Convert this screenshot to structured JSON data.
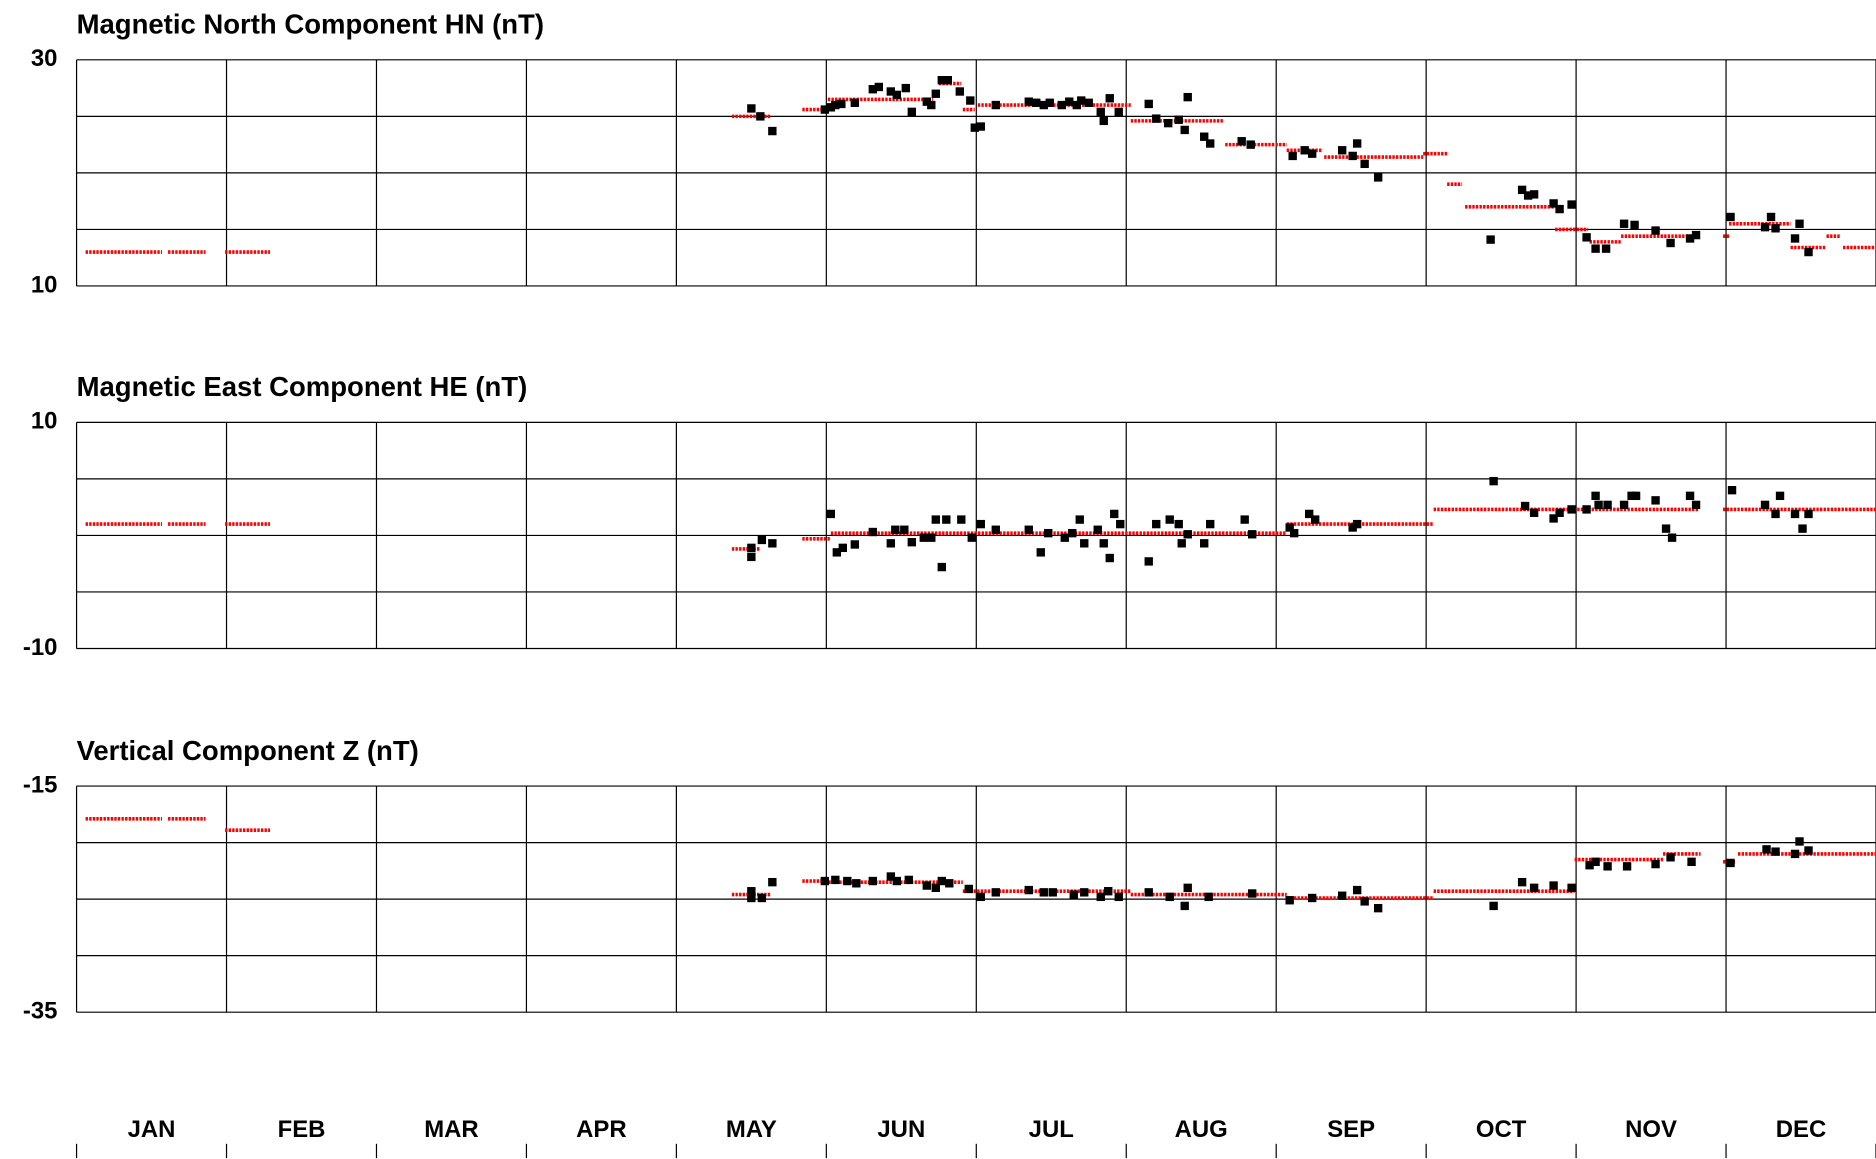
{
  "chart_data": [
    {
      "type": "scatter",
      "title": "Magnetic North Component HN (nT)",
      "xlim": [
        0,
        12
      ],
      "xticks": [
        0,
        1,
        2,
        3,
        4,
        5,
        6,
        7,
        8,
        9,
        10,
        11,
        12
      ],
      "ylim": [
        10,
        30
      ],
      "yticks": [
        10,
        30
      ],
      "ygrid": [
        15,
        20,
        25
      ],
      "series": [
        {
          "color": "#000000",
          "x": [
            4.5,
            4.56,
            4.64,
            4.99,
            5.03,
            5.06,
            5.1,
            5.19,
            5.31,
            5.35,
            5.43,
            5.47,
            5.53,
            5.57,
            5.67,
            5.7,
            5.73,
            5.77,
            5.81,
            5.89,
            5.96,
            5.99,
            6.03,
            6.13,
            6.35,
            6.4,
            6.45,
            6.49,
            6.57,
            6.62,
            6.67,
            6.7,
            6.75,
            6.83,
            6.85,
            6.89,
            6.95,
            7.15,
            7.2,
            7.28,
            7.35,
            7.39,
            7.41,
            7.52,
            7.56,
            7.77,
            7.83,
            8.11,
            8.19,
            8.24,
            8.44,
            8.51,
            8.54,
            8.59,
            8.68,
            9.43,
            9.64,
            9.68,
            9.72,
            9.85,
            9.89,
            9.97,
            10.07,
            10.13,
            10.2,
            10.32,
            10.39,
            10.53,
            10.63,
            10.76,
            10.8,
            11.03,
            11.26,
            11.3,
            11.33,
            11.46,
            11.49,
            11.55
          ],
          "values": [
            25.7,
            25.0,
            23.7,
            25.6,
            25.8,
            26.0,
            26.1,
            26.2,
            27.4,
            27.6,
            27.2,
            26.9,
            27.5,
            25.4,
            26.3,
            26.0,
            27.0,
            28.2,
            28.2,
            27.2,
            26.4,
            24.0,
            24.1,
            26.0,
            26.3,
            26.2,
            26.0,
            26.2,
            26.0,
            26.3,
            26.0,
            26.4,
            26.2,
            25.4,
            24.6,
            26.6,
            25.4,
            26.1,
            24.8,
            24.4,
            24.7,
            23.8,
            26.7,
            23.2,
            22.6,
            22.8,
            22.5,
            21.5,
            22.0,
            21.7,
            22.0,
            21.5,
            22.6,
            20.8,
            19.6,
            14.1,
            18.5,
            18.0,
            18.1,
            17.3,
            16.8,
            17.2,
            14.3,
            13.3,
            13.3,
            15.5,
            15.4,
            14.9,
            13.8,
            14.2,
            14.5,
            16.1,
            15.2,
            16.1,
            15.1,
            14.2,
            15.5,
            13.0
          ]
        }
      ],
      "baselines": {
        "color": "#ff0000",
        "segments": [
          {
            "x": [
              0.06,
              0.57
            ],
            "value": 13.0
          },
          {
            "x": [
              0.61,
              0.86
            ],
            "value": 13.0
          },
          {
            "x": [
              0.99,
              1.29
            ],
            "value": 13.0
          },
          {
            "x": [
              4.37,
              4.63
            ],
            "value": 25.0
          },
          {
            "x": [
              4.84,
              4.99
            ],
            "value": 25.6
          },
          {
            "x": [
              5.01,
              5.71
            ],
            "value": 26.5
          },
          {
            "x": [
              5.75,
              5.9
            ],
            "value": 27.9
          },
          {
            "x": [
              5.91,
              5.99
            ],
            "value": 25.6
          },
          {
            "x": [
              6.01,
              7.03
            ],
            "value": 26.0
          },
          {
            "x": [
              7.03,
              7.65
            ],
            "value": 24.6
          },
          {
            "x": [
              7.66,
              8.07
            ],
            "value": 22.5
          },
          {
            "x": [
              8.07,
              8.31
            ],
            "value": 22.0
          },
          {
            "x": [
              8.32,
              8.98
            ],
            "value": 21.4
          },
          {
            "x": [
              8.98,
              9.14
            ],
            "value": 21.7
          },
          {
            "x": [
              9.14,
              9.24
            ],
            "value": 19.0
          },
          {
            "x": [
              9.26,
              9.86
            ],
            "value": 17.0
          },
          {
            "x": [
              9.86,
              10.08
            ],
            "value": 15.0
          },
          {
            "x": [
              10.09,
              10.3
            ],
            "value": 13.9
          },
          {
            "x": [
              10.3,
              10.82
            ],
            "value": 14.4
          },
          {
            "x": [
              10.98,
              11.02
            ],
            "value": 14.4
          },
          {
            "x": [
              11.02,
              11.43
            ],
            "value": 15.5
          },
          {
            "x": [
              11.43,
              11.66
            ],
            "value": 13.4
          },
          {
            "x": [
              11.67,
              11.76
            ],
            "value": 14.4
          },
          {
            "x": [
              11.78,
              12.0
            ],
            "value": 13.4
          }
        ]
      }
    },
    {
      "type": "scatter",
      "title": "Magnetic East Component HE (nT)",
      "xlim": [
        0,
        12
      ],
      "xticks": [
        0,
        1,
        2,
        3,
        4,
        5,
        6,
        7,
        8,
        9,
        10,
        11,
        12
      ],
      "ylim": [
        -10,
        10
      ],
      "yticks": [
        -10,
        10
      ],
      "ygrid": [
        -5,
        0,
        5
      ],
      "series": [
        {
          "color": "#000000",
          "x": [
            4.5,
            4.5,
            4.57,
            4.64,
            5.03,
            5.07,
            5.11,
            5.19,
            5.31,
            5.43,
            5.46,
            5.52,
            5.57,
            5.65,
            5.7,
            5.73,
            5.77,
            5.8,
            5.9,
            5.97,
            6.03,
            6.13,
            6.35,
            6.43,
            6.48,
            6.59,
            6.64,
            6.69,
            6.72,
            6.81,
            6.85,
            6.89,
            6.92,
            6.96,
            7.15,
            7.2,
            7.29,
            7.35,
            7.37,
            7.41,
            7.52,
            7.56,
            7.79,
            7.84,
            8.09,
            8.12,
            8.22,
            8.26,
            8.51,
            8.54,
            9.45,
            9.66,
            9.72,
            9.85,
            9.89,
            9.97,
            10.07,
            10.13,
            10.15,
            10.21,
            10.32,
            10.37,
            10.4,
            10.53,
            10.6,
            10.64,
            10.76,
            10.8,
            11.04,
            11.26,
            11.33,
            11.36,
            11.46,
            11.51,
            11.55
          ],
          "values": [
            -1.9,
            -1.1,
            -0.4,
            -0.7,
            1.9,
            -1.5,
            -1.1,
            -0.8,
            0.3,
            -0.7,
            0.5,
            0.5,
            -0.6,
            -0.2,
            -0.2,
            1.4,
            -2.8,
            1.4,
            1.4,
            -0.2,
            1.0,
            0.5,
            0.5,
            -1.5,
            0.2,
            -0.2,
            0.2,
            1.4,
            -0.7,
            0.5,
            -0.7,
            -2.0,
            1.9,
            1.0,
            -2.3,
            1.0,
            1.4,
            1.0,
            -0.7,
            0.1,
            -0.7,
            1.0,
            1.4,
            0.1,
            0.7,
            0.2,
            1.9,
            1.4,
            0.7,
            1.0,
            4.8,
            2.6,
            2.0,
            1.5,
            2.0,
            2.3,
            2.3,
            3.5,
            2.7,
            2.7,
            2.7,
            3.5,
            3.5,
            3.1,
            0.6,
            -0.2,
            3.5,
            2.7,
            4.0,
            2.7,
            1.9,
            3.5,
            1.9,
            0.6,
            1.9
          ]
        }
      ],
      "baselines": {
        "color": "#ff0000",
        "segments": [
          {
            "x": [
              0.06,
              0.57
            ],
            "value": 1.0
          },
          {
            "x": [
              0.61,
              0.86
            ],
            "value": 1.0
          },
          {
            "x": [
              0.99,
              1.29
            ],
            "value": 1.0
          },
          {
            "x": [
              4.37,
              4.56
            ],
            "value": -1.2
          },
          {
            "x": [
              4.84,
              5.03
            ],
            "value": -0.3
          },
          {
            "x": [
              5.03,
              8.07
            ],
            "value": 0.2
          },
          {
            "x": [
              8.07,
              9.05
            ],
            "value": 1.0
          },
          {
            "x": [
              9.05,
              10.82
            ],
            "value": 2.3
          },
          {
            "x": [
              10.98,
              12.0
            ],
            "value": 2.3
          }
        ]
      }
    },
    {
      "type": "scatter",
      "title": "Vertical Component Z (nT)",
      "xlim": [
        0,
        12
      ],
      "xticks": [
        0,
        1,
        2,
        3,
        4,
        5,
        6,
        7,
        8,
        9,
        10,
        11,
        12
      ],
      "ylim": [
        -35,
        -15
      ],
      "yticks": [
        -35,
        -15
      ],
      "ygrid": [
        -30,
        -25,
        -20
      ],
      "categories": [
        "JAN",
        "FEB",
        "MAR",
        "APR",
        "MAY",
        "JUN",
        "JUL",
        "AUG",
        "SEP",
        "OCT",
        "NOV",
        "DEC"
      ],
      "series": [
        {
          "color": "#000000",
          "x": [
            4.5,
            4.5,
            4.57,
            4.64,
            4.99,
            5.06,
            5.14,
            5.2,
            5.31,
            5.43,
            5.47,
            5.55,
            5.67,
            5.73,
            5.77,
            5.82,
            5.95,
            6.03,
            6.13,
            6.35,
            6.45,
            6.51,
            6.65,
            6.72,
            6.83,
            6.88,
            6.95,
            7.15,
            7.29,
            7.39,
            7.41,
            7.55,
            7.84,
            8.09,
            8.24,
            8.44,
            8.54,
            8.59,
            8.68,
            9.45,
            9.64,
            9.72,
            9.85,
            9.97,
            10.09,
            10.13,
            10.21,
            10.34,
            10.53,
            10.63,
            10.77,
            11.03,
            11.27,
            11.33,
            11.46,
            11.49,
            11.55
          ],
          "values": [
            -24.3,
            -24.9,
            -24.9,
            -23.5,
            -23.4,
            -23.3,
            -23.4,
            -23.6,
            -23.4,
            -23.0,
            -23.4,
            -23.3,
            -23.8,
            -24.0,
            -23.4,
            -23.6,
            -24.1,
            -24.8,
            -24.4,
            -24.2,
            -24.4,
            -24.4,
            -24.6,
            -24.4,
            -24.8,
            -24.3,
            -24.8,
            -24.4,
            -24.8,
            -25.6,
            -24.0,
            -24.8,
            -24.5,
            -25.1,
            -24.9,
            -24.7,
            -24.2,
            -25.2,
            -25.8,
            -25.6,
            -23.5,
            -24.0,
            -23.8,
            -24.0,
            -22.0,
            -21.7,
            -22.1,
            -22.1,
            -21.9,
            -21.3,
            -21.7,
            -21.8,
            -20.6,
            -20.8,
            -21.0,
            -19.9,
            -20.7
          ]
        }
      ],
      "baselines": {
        "color": "#ff0000",
        "segments": [
          {
            "x": [
              0.06,
              0.57
            ],
            "value": -17.9
          },
          {
            "x": [
              0.61,
              0.86
            ],
            "value": -17.9
          },
          {
            "x": [
              0.99,
              1.29
            ],
            "value": -18.9
          },
          {
            "x": [
              4.37,
              4.63
            ],
            "value": -24.6
          },
          {
            "x": [
              4.84,
              4.99
            ],
            "value": -23.4
          },
          {
            "x": [
              4.99,
              5.91
            ],
            "value": -23.5
          },
          {
            "x": [
              5.91,
              7.03
            ],
            "value": -24.3
          },
          {
            "x": [
              7.03,
              8.07
            ],
            "value": -24.6
          },
          {
            "x": [
              8.07,
              9.05
            ],
            "value": -24.9
          },
          {
            "x": [
              9.05,
              9.99
            ],
            "value": -24.3
          },
          {
            "x": [
              9.99,
              10.58
            ],
            "value": -21.5
          },
          {
            "x": [
              10.58,
              10.83
            ],
            "value": -21.0
          },
          {
            "x": [
              10.98,
              11.06
            ],
            "value": -21.7
          },
          {
            "x": [
              11.08,
              12.0
            ],
            "value": -21.0
          }
        ]
      }
    }
  ]
}
